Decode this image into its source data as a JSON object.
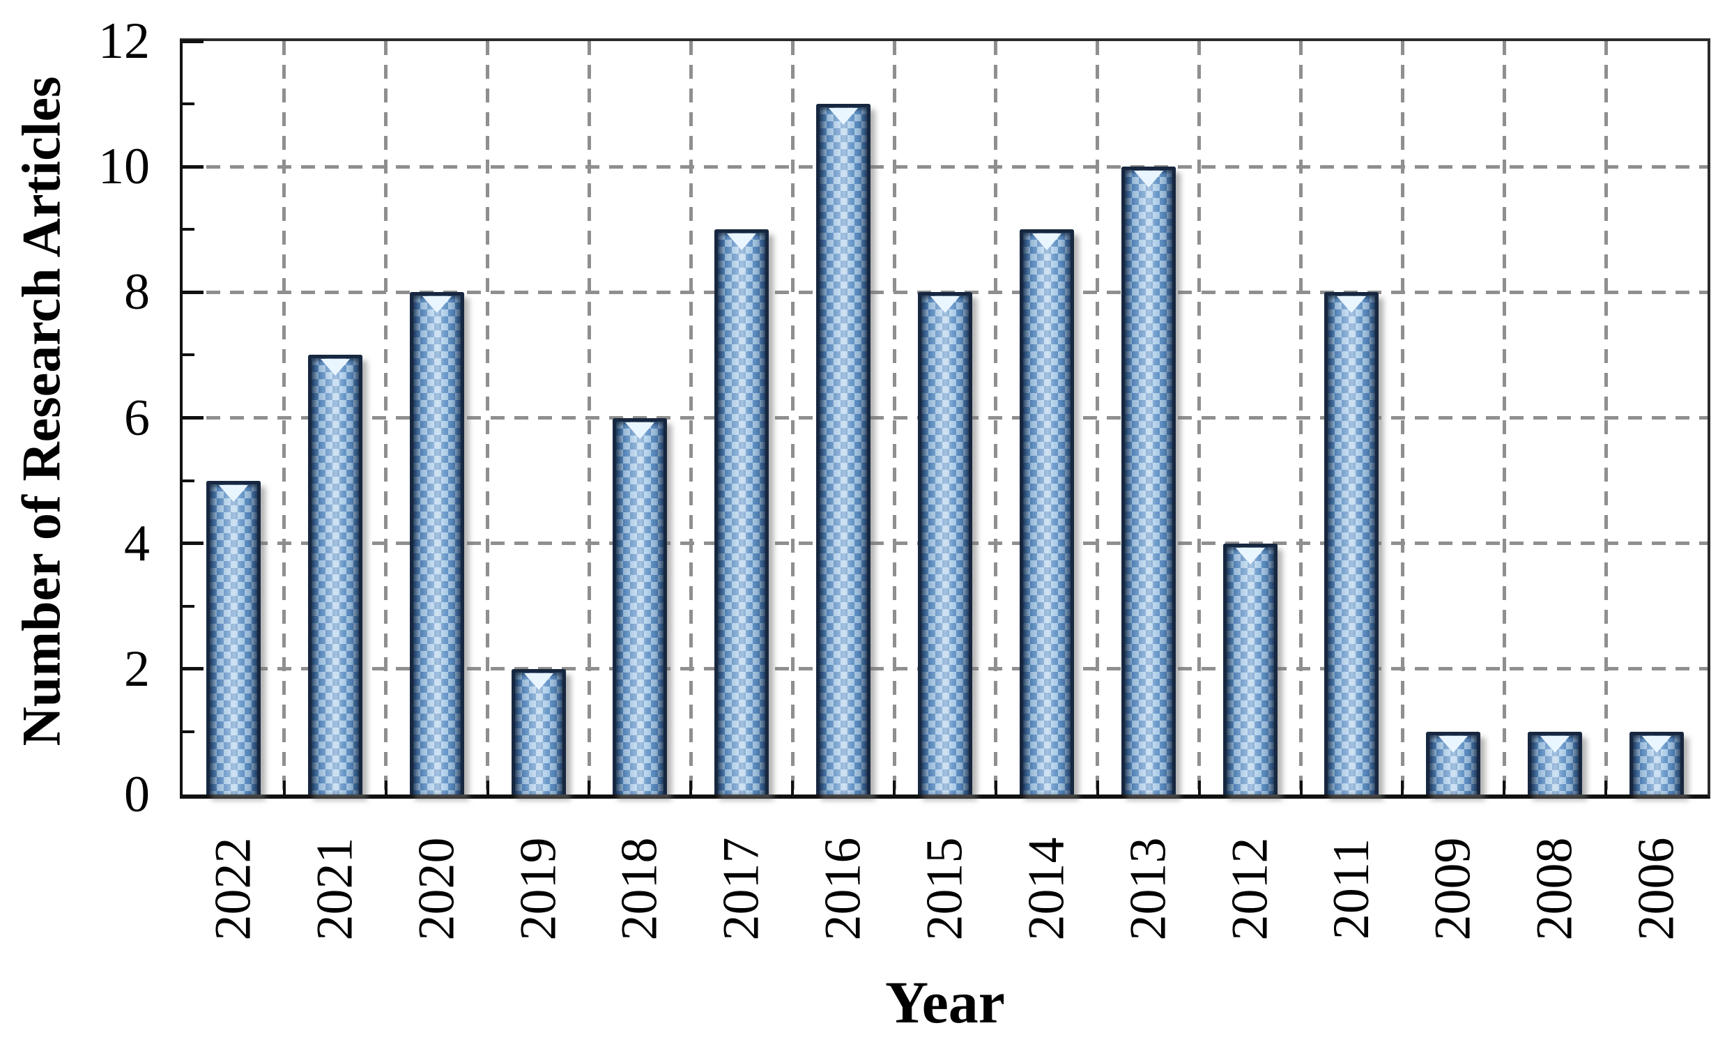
{
  "chart_data": {
    "type": "bar",
    "title": "",
    "xlabel": "Year",
    "ylabel": "Number of Research Articles",
    "categories": [
      "2022",
      "2021",
      "2020",
      "2019",
      "2018",
      "2017",
      "2016",
      "2015",
      "2014",
      "2013",
      "2012",
      "2011",
      "2009",
      "2008",
      "2006"
    ],
    "values": [
      5,
      7,
      8,
      2,
      6,
      9,
      11,
      8,
      9,
      10,
      4,
      8,
      1,
      1,
      1
    ],
    "ylim": [
      0,
      12
    ],
    "yticks": [
      0,
      2,
      4,
      6,
      8,
      10,
      12
    ],
    "minor_ytick_step": 1,
    "grid": {
      "horizontal": "dashed",
      "vertical": "dashed-at-category-boundaries"
    },
    "legend_position": "none",
    "bar_style": "patterned light-blue fill, dark navy outline, glossy v-notch highlight, drop shadow"
  },
  "colors": {
    "background": "#ffffff",
    "bar_checker_light": "#a9cbe8",
    "bar_checker_dark": "#5b8ec5",
    "bar_border": "#17273f",
    "bar_gloss_notch": "#e9f5ff",
    "gridline": "#8f8f8f",
    "frame": "#2b2b2b",
    "axis_text": "#000000"
  }
}
